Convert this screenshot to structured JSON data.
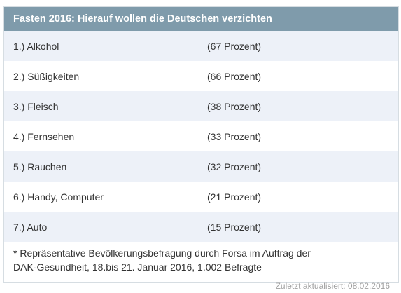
{
  "table": {
    "title": "Fasten 2016: Hierauf wollen die Deutschen verzichten",
    "rows": [
      {
        "item": "1.) Alkohol",
        "value": "(67 Prozent)"
      },
      {
        "item": "2.) Süßigkeiten",
        "value": "(66 Prozent)"
      },
      {
        "item": "3.) Fleisch",
        "value": "(38 Prozent)"
      },
      {
        "item": "4.) Fernsehen",
        "value": "(33 Prozent)"
      },
      {
        "item": "5.) Rauchen",
        "value": "(32 Prozent)"
      },
      {
        "item": "6.) Handy, Computer",
        "value": "(21 Prozent)"
      },
      {
        "item": "7.) Auto",
        "value": "(15 Prozent)"
      }
    ],
    "footnote_line1": "* Repräsentative Bevölkerungsbefragung durch Forsa im Auftrag der",
    "footnote_line2": "DAK-Gesundheit, 18.bis 21. Januar 2016, 1.002 Befragte"
  },
  "updated": "Zuletzt aktualisiert: 08.02.2016",
  "colors": {
    "header_bg": "#7f9bab",
    "row_stripe": "#edf1f8",
    "text": "#333333"
  }
}
